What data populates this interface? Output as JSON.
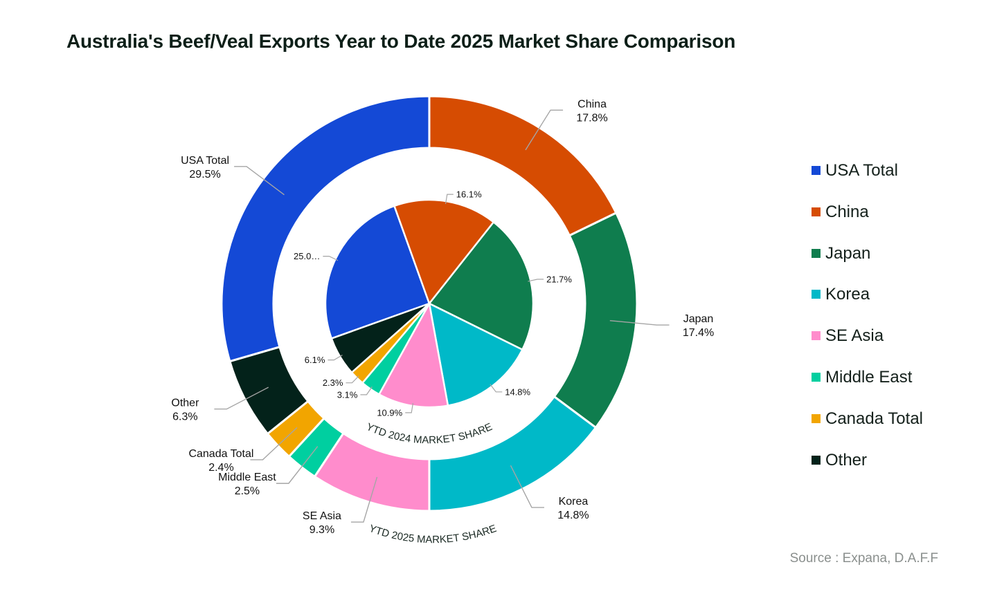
{
  "chart_data": {
    "type": "pie",
    "title": "Australia's Beef/Veal Exports Year to Date 2025 Market Share Comparison",
    "categories": [
      "USA Total",
      "China",
      "Japan",
      "Korea",
      "SE Asia",
      "Middle East",
      "Canada Total",
      "Other"
    ],
    "colors": [
      "#1449d6",
      "#d64c02",
      "#0f7d4e",
      "#00b9c8",
      "#ff8ccc",
      "#00cfa0",
      "#f2a500",
      "#03221a"
    ],
    "series": [
      {
        "name": "YTD 2025 MARKET SHARE",
        "values": [
          29.5,
          17.8,
          17.4,
          14.8,
          9.3,
          2.5,
          2.4,
          6.3
        ],
        "labels": [
          "29.5%",
          "17.8%",
          "17.4%",
          "14.8%",
          "9.3%",
          "2.5%",
          "2.4%",
          "6.3%"
        ]
      },
      {
        "name": "YTD 2024 MARKET SHARE",
        "values": [
          25.0,
          16.1,
          21.7,
          14.8,
          10.9,
          3.1,
          2.3,
          6.1
        ],
        "labels": [
          "25.0…",
          "16.1%",
          "21.7%",
          "14.8%",
          "10.9%",
          "3.1%",
          "2.3%",
          "6.1%"
        ]
      }
    ],
    "legend": {
      "position": "right"
    }
  },
  "source": "Source : Expana, D.A.F.F"
}
